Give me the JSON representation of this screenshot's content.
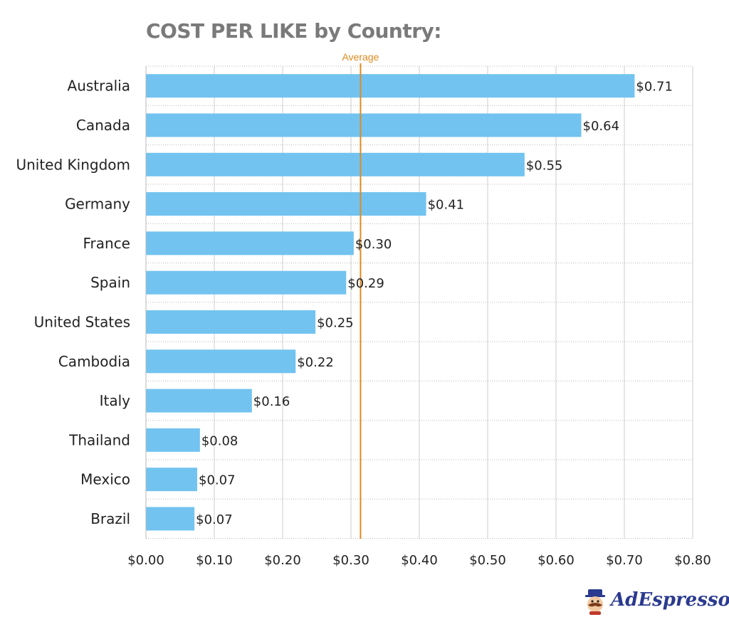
{
  "chart_data": {
    "type": "bar",
    "orientation": "horizontal",
    "title": "COST PER LIKE by Country:",
    "categories": [
      "Australia",
      "Canada",
      "United Kingdom",
      "Germany",
      "France",
      "Spain",
      "United States",
      "Cambodia",
      "Italy",
      "Thailand",
      "Mexico",
      "Brazil"
    ],
    "values": [
      0.715,
      0.637,
      0.554,
      0.41,
      0.304,
      0.293,
      0.248,
      0.219,
      0.155,
      0.079,
      0.075,
      0.071
    ],
    "value_labels": [
      "$0.71",
      "$0.64",
      "$0.55",
      "$0.41",
      "$0.30",
      "$0.29",
      "$0.25",
      "$0.22",
      "$0.16",
      "$0.08",
      "$0.07",
      "$0.07"
    ],
    "xlim": [
      0,
      0.8
    ],
    "x_ticks": [
      0,
      0.1,
      0.2,
      0.3,
      0.4,
      0.5,
      0.6,
      0.7,
      0.8
    ],
    "x_tick_labels": [
      "$0.00",
      "$0.10",
      "$0.20",
      "$0.30",
      "$0.40",
      "$0.50",
      "$0.60",
      "$0.70",
      "$0.80"
    ],
    "reference_line": {
      "label": "Average",
      "value": 0.314
    },
    "grid": true,
    "colors": {
      "bar": "#72c3f0",
      "average": "#e08a1e",
      "grid": "#cccccc",
      "title": "#7a7a7a"
    }
  },
  "brand": {
    "name": "AdEspresso",
    "color": "#2b3a8f"
  }
}
